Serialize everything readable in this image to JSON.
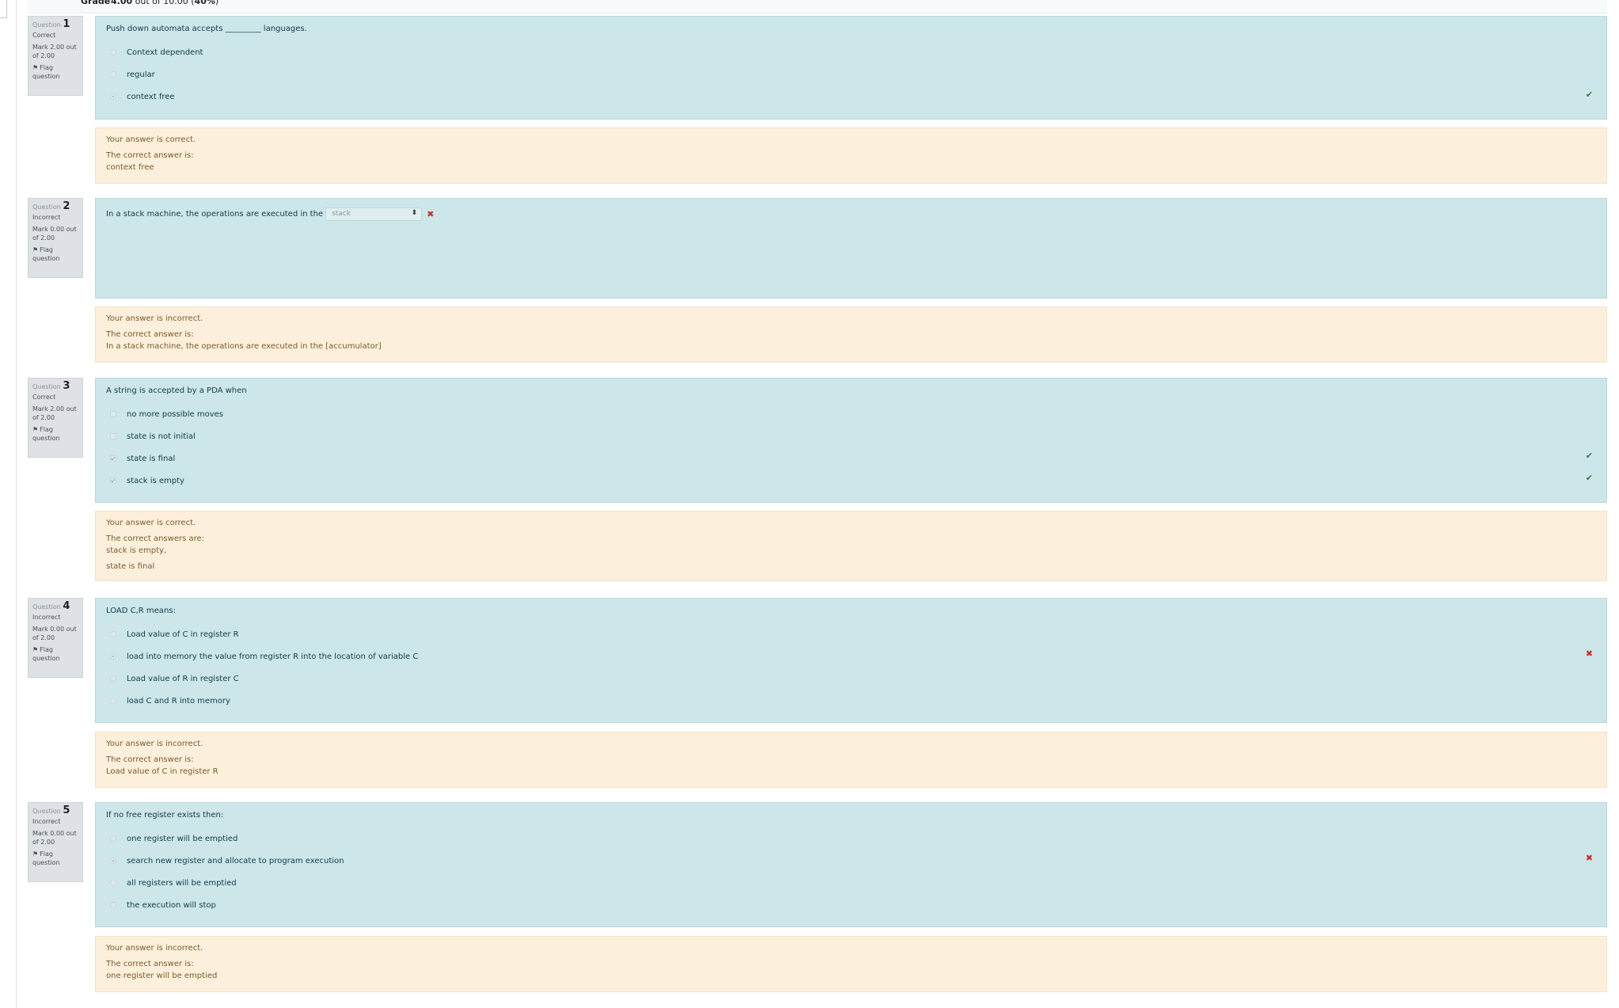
{
  "grade": {
    "label": "Grade",
    "value": "4.00",
    "suffix": "out of 10.00",
    "percent": "(40%)"
  },
  "questions": [
    {
      "number_label": "Question",
      "number": "1",
      "state": "Correct",
      "mark": "Mark 2.00 out of 2.00",
      "flag": "Flag question",
      "text": "Push down automata accepts _________ languages.",
      "options": [
        "Context dependent",
        "regular",
        "context free"
      ],
      "selected": [
        "context free"
      ],
      "result": "correct",
      "feedback": {
        "status": "Your answer is correct.",
        "answer_label": "The correct answer is:",
        "answers": [
          "context free"
        ]
      }
    },
    {
      "number_label": "Question",
      "number": "2",
      "state": "Incorrect",
      "mark": "Mark 0.00 out of 2.00",
      "flag": "Flag question",
      "text": "In a stack machine, the operations are executed in the",
      "select_value": "stack",
      "result": "incorrect",
      "feedback": {
        "status": "Your answer is incorrect.",
        "answer_label": "The correct answer is:",
        "answers": [
          "In a stack machine, the operations are executed in the [accumulator]"
        ]
      }
    },
    {
      "number_label": "Question",
      "number": "3",
      "state": "Correct",
      "mark": "Mark 2.00 out of 2.00",
      "flag": "Flag question",
      "text": "A string is accepted by a PDA when",
      "options": [
        "no more possible moves",
        "state is not initial",
        "state is final",
        "stack is empty"
      ],
      "selected": [
        "state is final",
        "stack is empty"
      ],
      "result": "correct",
      "feedback": {
        "status": "Your answer is correct.",
        "answer_label": "The correct answers are:",
        "answers": [
          "stack is empty,",
          "state is final"
        ]
      }
    },
    {
      "number_label": "Question",
      "number": "4",
      "state": "Incorrect",
      "mark": "Mark 0.00 out of 2.00",
      "flag": "Flag question",
      "text": "LOAD C,R means:",
      "options": [
        "Load value of C in register R",
        "load into memory the value from register R into the location of variable C",
        "Load value of R in register C",
        "load C and R into memory"
      ],
      "selected": [
        "load into memory the value from register R into the location of variable C"
      ],
      "result": "incorrect",
      "feedback": {
        "status": "Your answer is incorrect.",
        "answer_label": "The correct answer is:",
        "answers": [
          "Load value of C in register R"
        ]
      }
    },
    {
      "number_label": "Question",
      "number": "5",
      "state": "Incorrect",
      "mark": "Mark 0.00 out of 2.00",
      "flag": "Flag question",
      "text": "If no free register exists then:",
      "options": [
        "one register will be emptied",
        "search new register and allocate to program execution",
        "all registers will be emptied",
        "the execution will stop"
      ],
      "selected": [
        "search new register and allocate to program execution"
      ],
      "result": "incorrect",
      "feedback": {
        "status": "Your answer is incorrect.",
        "answer_label": "The correct answer is:",
        "answers": [
          "one register will be emptied"
        ]
      }
    }
  ],
  "icons": {
    "flag": "flag-icon",
    "correct": "check-icon",
    "incorrect": "cross-icon",
    "select_arrow": "updown-arrow-icon"
  },
  "colors": {
    "formulation_bg": "#cde6ea",
    "outcome_bg": "#fcefdc",
    "info_bg": "#dee2e6",
    "correct": "#357a32",
    "incorrect": "#ca3120"
  }
}
